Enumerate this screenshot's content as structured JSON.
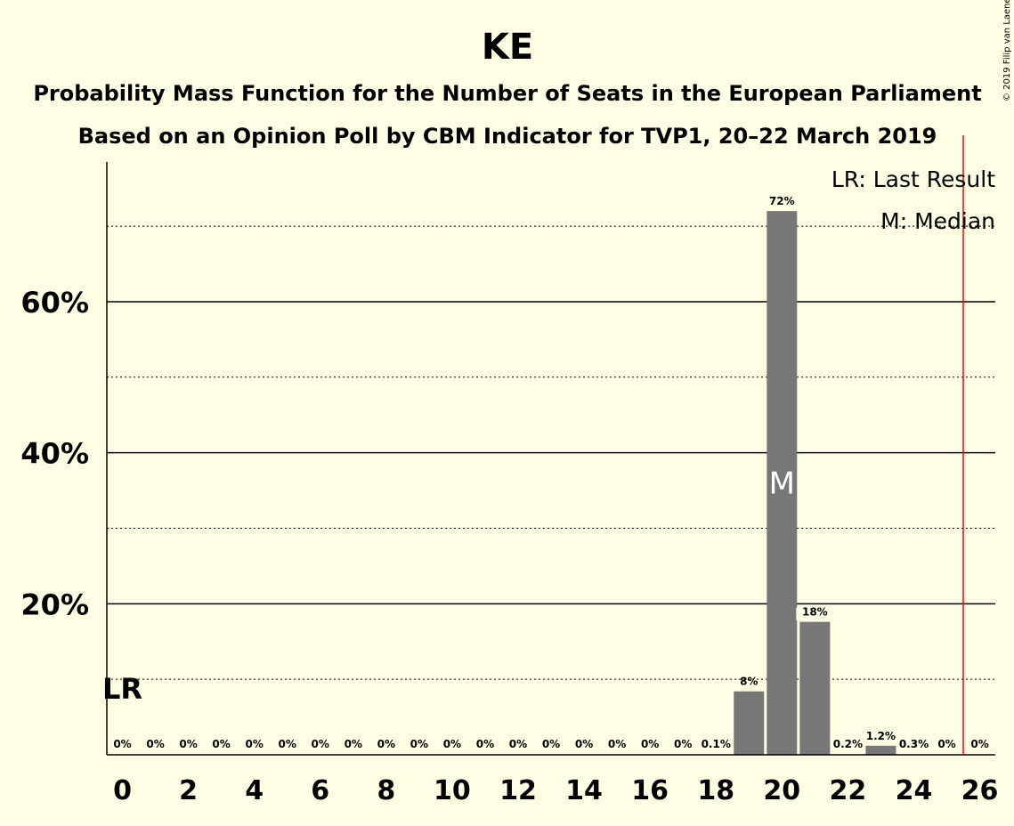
{
  "copyright": "© 2019 Filip van Laenen",
  "chart_data": {
    "type": "bar",
    "title": "KE",
    "subtitle_1": "Probability Mass Function for the Number of Seats in the European Parliament",
    "subtitle_2": "Based on an Opinion Poll by CBM Indicator for TVP1, 20–22 March 2019",
    "x": [
      0,
      1,
      2,
      3,
      4,
      5,
      6,
      7,
      8,
      9,
      10,
      11,
      12,
      13,
      14,
      15,
      16,
      17,
      18,
      19,
      20,
      21,
      22,
      23,
      24,
      25,
      26
    ],
    "values": [
      0,
      0,
      0,
      0,
      0,
      0,
      0,
      0,
      0,
      0,
      0,
      0,
      0,
      0,
      0,
      0,
      0,
      0,
      0.1,
      8.4,
      72,
      17.6,
      0.2,
      1.2,
      0.3,
      0,
      0
    ],
    "data_labels": [
      "0%",
      "0%",
      "0%",
      "0%",
      "0%",
      "0%",
      "0%",
      "0%",
      "0%",
      "0%",
      "0%",
      "0%",
      "0%",
      "0%",
      "0%",
      "0%",
      "0%",
      "0%",
      "0.1%",
      "8%",
      "72%",
      "18%",
      "0.2%",
      "1.2%",
      "0.3%",
      "0%",
      "0%"
    ],
    "xticks": [
      0,
      2,
      4,
      6,
      8,
      10,
      12,
      14,
      16,
      18,
      20,
      22,
      24,
      26
    ],
    "xtick_labels": [
      "0",
      "2",
      "4",
      "6",
      "8",
      "10",
      "12",
      "14",
      "16",
      "18",
      "20",
      "22",
      "24",
      "26"
    ],
    "yticks": [
      20,
      40,
      60
    ],
    "ytick_labels": [
      "20%",
      "40%",
      "60%"
    ],
    "minor_gridlines": [
      10,
      30,
      50,
      70
    ],
    "ylim": [
      0,
      78.5
    ],
    "median_seat": 20,
    "median_label": "M",
    "last_result_seat": 0,
    "last_result_label": "LR",
    "majority_line": 25.5,
    "legend_last_result": "LR: Last Result",
    "legend_median": "M: Median",
    "legend_position": "top-right",
    "bar_color": "#777777",
    "majority_color": "#FF0000",
    "background": "#FFFEE5"
  }
}
